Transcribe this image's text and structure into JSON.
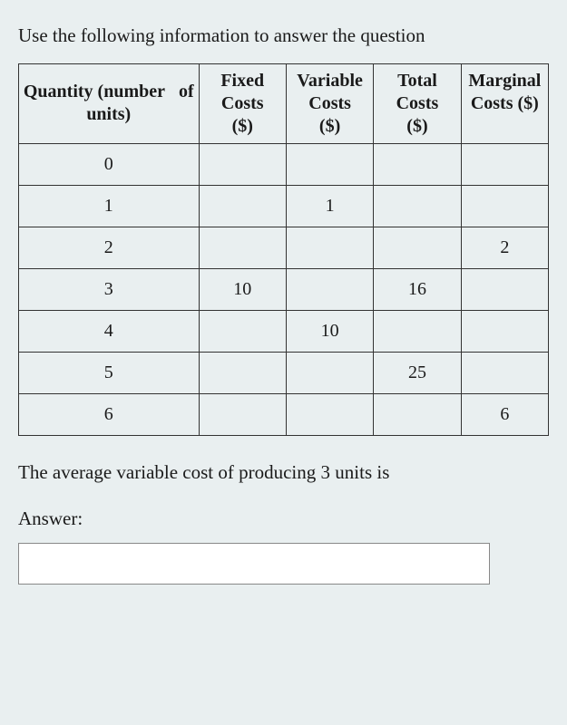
{
  "intro": "Use the following information to answer the question",
  "table": {
    "columns": [
      "Quantity (number of units)",
      "Fixed Costs ($)",
      "Variable Costs ($)",
      "Total Costs ($)",
      "Marginal Costs ($)"
    ],
    "header_lines": {
      "qty_l1": "Quantity (number",
      "qty_l2": "units)",
      "fc_l1": "Fixed",
      "fc_l2": "Costs",
      "fc_l3": "($)",
      "vc_l1": "Variable",
      "vc_l2": "Costs",
      "vc_l3": "($)",
      "tc_l1": "Total",
      "tc_l2": "Costs",
      "tc_l3": "($)",
      "mc_l1": "Marginal",
      "mc_l2": "Costs ($)",
      "of": "of"
    },
    "rows": [
      {
        "qty": "0",
        "fc": "",
        "vc": "",
        "tc": "",
        "mc": ""
      },
      {
        "qty": "1",
        "fc": "",
        "vc": "1",
        "tc": "",
        "mc": ""
      },
      {
        "qty": "2",
        "fc": "",
        "vc": "",
        "tc": "",
        "mc": "2"
      },
      {
        "qty": "3",
        "fc": "10",
        "vc": "",
        "tc": "16",
        "mc": ""
      },
      {
        "qty": "4",
        "fc": "",
        "vc": "10",
        "tc": "",
        "mc": ""
      },
      {
        "qty": "5",
        "fc": "",
        "vc": "",
        "tc": "25",
        "mc": ""
      },
      {
        "qty": "6",
        "fc": "",
        "vc": "",
        "tc": "",
        "mc": "6"
      }
    ],
    "border_color": "#333333",
    "background_color": "#e9eff0",
    "cell_fontsize": 20,
    "header_fontsize": 20
  },
  "question": "The average variable cost of producing 3 units is",
  "answer_label": "Answer:",
  "answer_value": "",
  "colors": {
    "page_bg": "#e9eff0",
    "text": "#1a1a1a",
    "input_bg": "#ffffff",
    "input_border": "#888888"
  }
}
